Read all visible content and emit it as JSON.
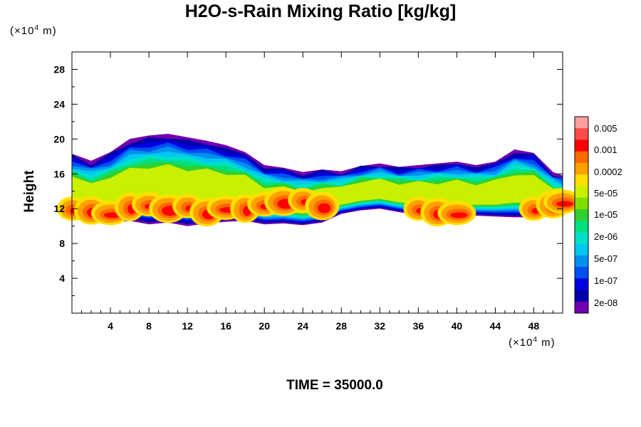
{
  "chart_data": {
    "type": "heatmap",
    "title": "H2O-s-Rain Mixing Ratio [kg/kg]",
    "xlabel": "",
    "ylabel": "Height",
    "x_unit": {
      "prefix": "(×10",
      "exp": "4",
      "suffix": " m)"
    },
    "y_unit": {
      "prefix": "(×10",
      "exp": "4",
      "suffix": " m)"
    },
    "xlim": [
      0,
      51
    ],
    "ylim": [
      0,
      30
    ],
    "x_ticks": [
      4,
      8,
      12,
      16,
      20,
      24,
      28,
      32,
      36,
      40,
      44,
      48
    ],
    "y_ticks": [
      4,
      8,
      12,
      16,
      20,
      24,
      28
    ],
    "colorbar": {
      "labels": [
        "0.005",
        "0.001",
        "0.0002",
        "5e-05",
        "1e-05",
        "2e-06",
        "5e-07",
        "1e-07",
        "2e-08"
      ],
      "colors": [
        "#ff9e9e",
        "#ff4a4a",
        "#ff0000",
        "#ff6a00",
        "#ffa000",
        "#ffe000",
        "#c8f000",
        "#7fe000",
        "#30d030",
        "#00e080",
        "#00e0c8",
        "#00c8f0",
        "#0090f0",
        "#0050f0",
        "#0000e0",
        "#0000a8",
        "#7000b0"
      ]
    },
    "field": [
      {
        "x": 0,
        "lower": 10.8,
        "upper": 18.3,
        "core": 12.0
      },
      {
        "x": 2,
        "lower": 10.5,
        "upper": 17.5,
        "core": 11.8
      },
      {
        "x": 4,
        "lower": 10.3,
        "upper": 18.5,
        "core": 11.5
      },
      {
        "x": 6,
        "lower": 10.6,
        "upper": 20.0,
        "core": 12.2
      },
      {
        "x": 8,
        "lower": 10.2,
        "upper": 20.4,
        "core": 12.5
      },
      {
        "x": 10,
        "lower": 10.4,
        "upper": 20.6,
        "core": 12.0
      },
      {
        "x": 12,
        "lower": 10.0,
        "upper": 20.2,
        "core": 12.3
      },
      {
        "x": 14,
        "lower": 10.3,
        "upper": 19.8,
        "core": 11.6
      },
      {
        "x": 16,
        "lower": 10.5,
        "upper": 19.3,
        "core": 12.1
      },
      {
        "x": 18,
        "lower": 10.6,
        "upper": 18.5,
        "core": 12.0
      },
      {
        "x": 20,
        "lower": 10.2,
        "upper": 17.0,
        "core": 12.5
      },
      {
        "x": 22,
        "lower": 10.3,
        "upper": 16.7,
        "core": 12.8
      },
      {
        "x": 24,
        "lower": 10.1,
        "upper": 16.2,
        "core": 13.0
      },
      {
        "x": 26,
        "lower": 10.4,
        "upper": 16.5,
        "core": 12.3
      },
      {
        "x": 28,
        "lower": 11.4,
        "upper": 16.3,
        "core": 0
      },
      {
        "x": 30,
        "lower": 11.8,
        "upper": 16.9,
        "core": 0
      },
      {
        "x": 32,
        "lower": 12.0,
        "upper": 17.2,
        "core": 0
      },
      {
        "x": 34,
        "lower": 11.6,
        "upper": 16.8,
        "core": 0
      },
      {
        "x": 36,
        "lower": 11.3,
        "upper": 17.0,
        "core": 12.0
      },
      {
        "x": 38,
        "lower": 11.2,
        "upper": 17.2,
        "core": 11.6
      },
      {
        "x": 40,
        "lower": 11.0,
        "upper": 17.4,
        "core": 11.5
      },
      {
        "x": 42,
        "lower": 11.2,
        "upper": 17.0,
        "core": 0
      },
      {
        "x": 44,
        "lower": 11.1,
        "upper": 17.4,
        "core": 0
      },
      {
        "x": 46,
        "lower": 11.0,
        "upper": 18.8,
        "core": 0
      },
      {
        "x": 48,
        "lower": 11.0,
        "upper": 18.4,
        "core": 12.0
      },
      {
        "x": 50,
        "lower": 11.1,
        "upper": 16.2,
        "core": 12.5
      },
      {
        "x": 51,
        "lower": 11.2,
        "upper": 15.8,
        "core": 12.8
      }
    ]
  },
  "footer": {
    "time_text": "TIME = 35000.0"
  }
}
